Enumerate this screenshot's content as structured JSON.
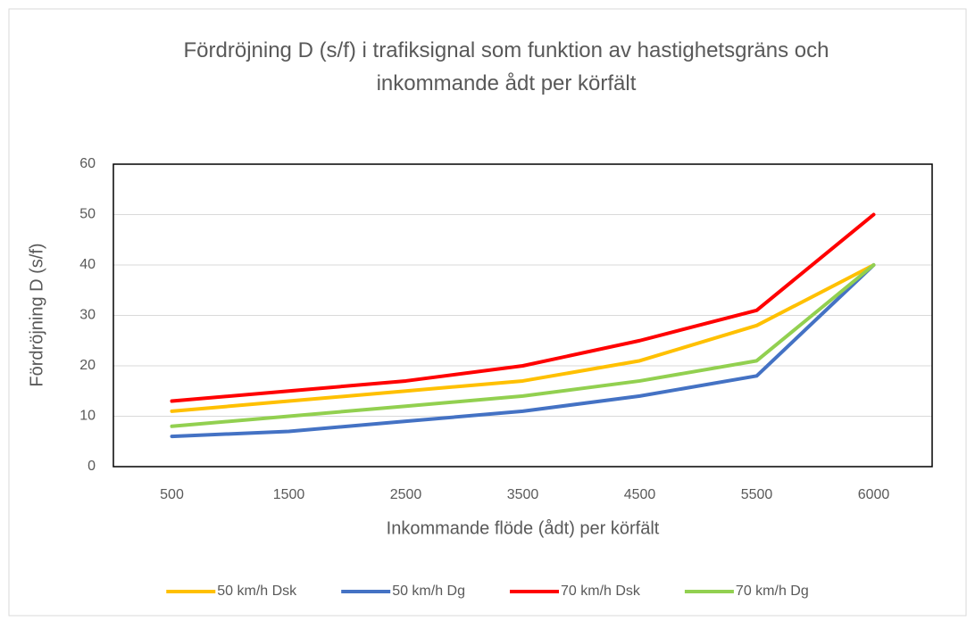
{
  "chart_data": {
    "type": "line",
    "title": "Fördröjning D (s/f) i trafiksignal som funktion av hastighetsgräns och inkommande ådt per körfält",
    "x_label": "Inkommande flöde (ådt) per körfält",
    "y_label": "Fördröjning D (s/f)",
    "categories": [
      "500",
      "1500",
      "2500",
      "3500",
      "4500",
      "5500",
      "6000"
    ],
    "series": [
      {
        "name": "50 km/h Dsk",
        "color": "#FFC000",
        "values": [
          11,
          13,
          15,
          17,
          21,
          28,
          40
        ]
      },
      {
        "name": "50 km/h Dg",
        "color": "#4472C4",
        "values": [
          6,
          7,
          9,
          11,
          14,
          18,
          40
        ]
      },
      {
        "name": "70 km/h Dsk",
        "color": "#FF0000",
        "values": [
          13,
          15,
          17,
          20,
          25,
          31,
          50
        ]
      },
      {
        "name": "70 km/h Dg",
        "color": "#92D050",
        "values": [
          8,
          10,
          12,
          14,
          17,
          21,
          40
        ]
      }
    ],
    "ylim": [
      0,
      60
    ],
    "yticks": [
      0,
      10,
      20,
      30,
      40,
      50,
      60
    ],
    "grid": true,
    "legend": "bottom"
  }
}
